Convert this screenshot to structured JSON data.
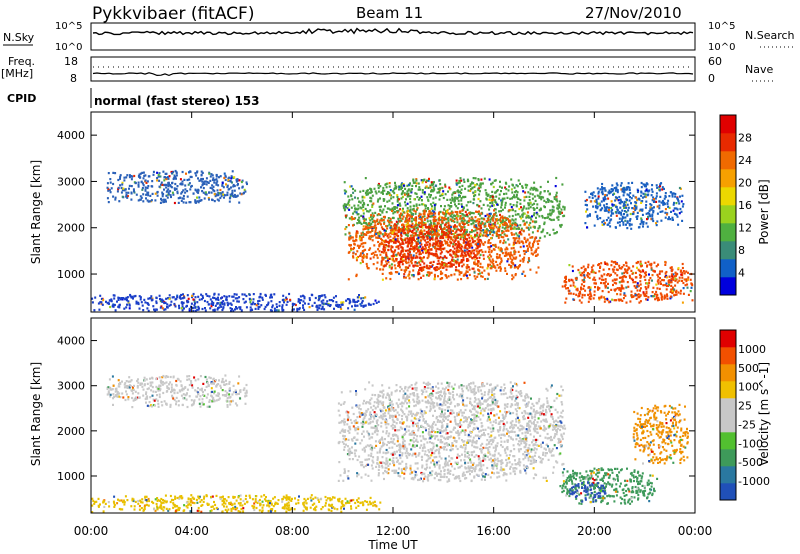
{
  "header": {
    "station": "Pykkvibaer (fitACF)",
    "beam": "Beam 11",
    "date": "27/Nov/2010"
  },
  "strip_labels": {
    "nsky": "N.Sky",
    "nsearch": "N.Search",
    "freq": "Freq.",
    "freq_unit": "[MHz]",
    "nave": "Nave",
    "cpid": "CPID",
    "cpid_value": "normal (fast stereo) 153",
    "nsky_ticks": [
      "10^5",
      "10^0"
    ],
    "nsearch_ticks": [
      "10^5",
      "10^0"
    ],
    "freq_ticks": [
      "18",
      "8"
    ],
    "nave_ticks": [
      "60",
      "0"
    ]
  },
  "chart_data": [
    {
      "type": "heatmap",
      "panel": "power",
      "ylabel": "Slant Range [km]",
      "yticks": [
        "4000",
        "3000",
        "2000",
        "1000"
      ],
      "colorbar_label": "Power [dB]",
      "colorbar_ticks": [
        "28",
        "24",
        "20",
        "16",
        "12",
        "8",
        "4"
      ],
      "colorbar_colors": [
        "#0000dd",
        "#1060c8",
        "#3a8c78",
        "#4fb040",
        "#9ad21e",
        "#ecd800",
        "#f6a000",
        "#f06a00",
        "#e82a00",
        "#e00000"
      ],
      "xlim": [
        0,
        24
      ],
      "ylim": [
        180,
        4500
      ],
      "regions": [
        {
          "t": [
            0.6,
            6.2
          ],
          "r": [
            2550,
            3250
          ],
          "c": "#2a60b8"
        },
        {
          "t": [
            10,
            18.8
          ],
          "r": [
            1800,
            3100
          ],
          "c": "#4aa040"
        },
        {
          "t": [
            10.2,
            17.8
          ],
          "r": [
            900,
            2400
          ],
          "c": "#f05a00"
        },
        {
          "t": [
            11.5,
            15.5
          ],
          "r": [
            1100,
            2100
          ],
          "c": "#e82a00"
        },
        {
          "t": [
            18.7,
            23.9
          ],
          "r": [
            400,
            1300
          ],
          "c": "#f04a00"
        },
        {
          "t": [
            19.5,
            23.5
          ],
          "r": [
            2000,
            3000
          ],
          "c": "#1a60c0"
        },
        {
          "t": [
            0,
            11.5
          ],
          "r": [
            220,
            600
          ],
          "c": "#1a3ec8"
        }
      ]
    },
    {
      "type": "heatmap",
      "panel": "velocity",
      "ylabel": "Slant Range [km]",
      "yticks": [
        "4000",
        "3000",
        "2000",
        "1000"
      ],
      "colorbar_label": "Velocity [m s^-1]",
      "colorbar_ticks": [
        "1000",
        "500",
        "100",
        "25",
        "-25",
        "-100",
        "-500",
        "-1000"
      ],
      "colorbar_colors": [
        "#2050b8",
        "#2a78a0",
        "#3e9a5a",
        "#52c030",
        "#c8c8c8",
        "#c8c8c8",
        "#f0c000",
        "#f29000",
        "#f25000",
        "#e00000"
      ],
      "xlim": [
        0,
        24
      ],
      "ylim": [
        180,
        4500
      ],
      "regions": [
        {
          "t": [
            0.6,
            6.2
          ],
          "r": [
            2550,
            3250
          ],
          "c": "#c8c8c8"
        },
        {
          "t": [
            9.8,
            18.8
          ],
          "r": [
            900,
            3100
          ],
          "c": "#c8c8c8"
        },
        {
          "t": [
            18.6,
            22.5
          ],
          "r": [
            400,
            1200
          ],
          "c": "#3e9a5a"
        },
        {
          "t": [
            19,
            20.5
          ],
          "r": [
            450,
            900
          ],
          "c": "#2a50b8"
        },
        {
          "t": [
            21.5,
            23.7
          ],
          "r": [
            1300,
            2600
          ],
          "c": "#f09000"
        },
        {
          "t": [
            0,
            11.5
          ],
          "r": [
            220,
            600
          ],
          "c": "#e8c000"
        }
      ]
    }
  ],
  "xaxis": {
    "label": "Time UT",
    "ticks": [
      "00:00",
      "04:00",
      "08:00",
      "12:00",
      "16:00",
      "20:00",
      "00:00"
    ]
  }
}
